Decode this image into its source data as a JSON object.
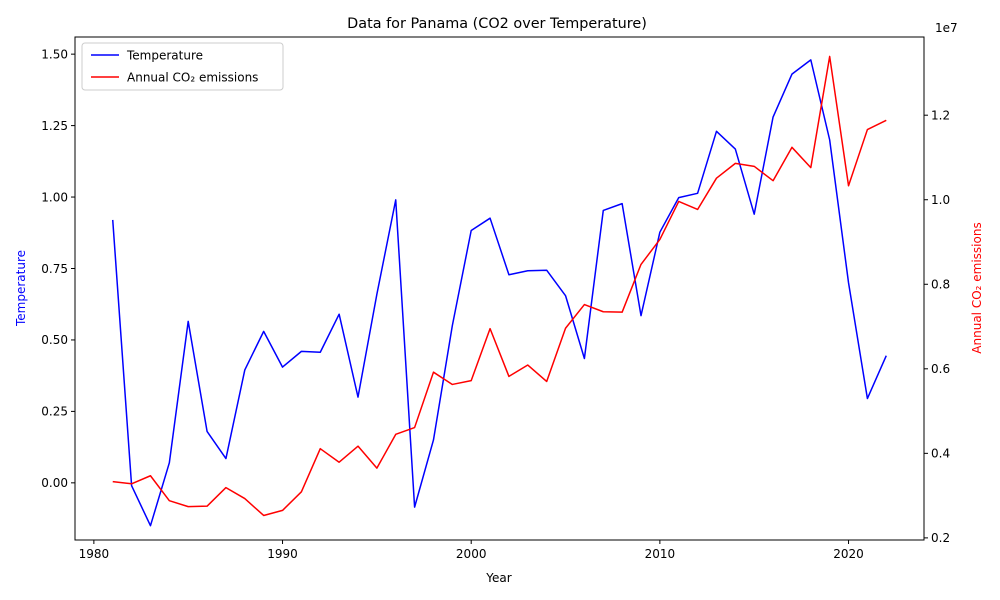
{
  "chart_data": {
    "type": "line",
    "title": "Data for Panama (CO2 over Temperature)",
    "xlabel": "Year",
    "x_ticks": [
      1980,
      1990,
      2000,
      2010,
      2020
    ],
    "xlim": [
      1979,
      2024
    ],
    "left_axis": {
      "label": "Temperature",
      "color": "#0000ff",
      "ylim": [
        -0.2,
        1.56
      ],
      "ticks": [
        -0.25,
        0.0,
        0.25,
        0.5,
        0.75,
        1.0,
        1.25,
        1.5
      ],
      "tick_labels": [
        "−0.25",
        "0.00",
        "0.25",
        "0.50",
        "0.75",
        "1.00",
        "1.25",
        "1.50"
      ]
    },
    "right_axis": {
      "label": "Annual CO₂ emissions",
      "color": "#ff0000",
      "ylim": [
        1.95,
        13.85
      ],
      "ticks": [
        2,
        4,
        6,
        8,
        10,
        12
      ],
      "tick_labels": [
        "0.2",
        "0.4",
        "0.6",
        "0.8",
        "1.0",
        "1.2"
      ],
      "offset_text": "1e7"
    },
    "legend": {
      "position": "top-left",
      "entries": [
        "Temperature",
        "Annual CO₂ emissions"
      ]
    },
    "grid": false,
    "x": [
      1981,
      1982,
      1983,
      1984,
      1985,
      1986,
      1987,
      1988,
      1989,
      1990,
      1991,
      1992,
      1993,
      1994,
      1995,
      1996,
      1997,
      1998,
      1999,
      2000,
      2001,
      2002,
      2003,
      2004,
      2005,
      2006,
      2007,
      2008,
      2009,
      2010,
      2011,
      2012,
      2013,
      2014,
      2015,
      2016,
      2017,
      2018,
      2019,
      2020,
      2021,
      2022
    ],
    "series": [
      {
        "name": "Temperature",
        "axis": "left",
        "color": "#0000ff",
        "values": [
          0.92,
          -0.01,
          -0.15,
          0.07,
          0.565,
          0.18,
          0.085,
          0.395,
          0.53,
          0.405,
          0.46,
          0.457,
          0.59,
          0.3,
          0.66,
          0.99,
          -0.085,
          0.15,
          0.55,
          0.883,
          0.926,
          0.728,
          0.742,
          0.744,
          0.655,
          0.435,
          0.953,
          0.977,
          0.585,
          0.877,
          0.998,
          1.013,
          1.23,
          1.168,
          0.94,
          1.28,
          1.43,
          1.48,
          1.2,
          0.7,
          0.295,
          0.445
        ]
      },
      {
        "name": "Annual CO₂ emissions",
        "axis": "right",
        "color": "#ff0000",
        "values": [
          3.33,
          3.28,
          3.47,
          2.88,
          2.74,
          2.75,
          3.19,
          2.93,
          2.53,
          2.65,
          3.09,
          4.11,
          3.79,
          4.17,
          3.65,
          4.45,
          4.61,
          5.92,
          5.63,
          5.72,
          6.95,
          5.82,
          6.09,
          5.7,
          6.96,
          7.52,
          7.35,
          7.34,
          8.47,
          9.06,
          9.96,
          9.77,
          10.51,
          10.86,
          10.79,
          10.45,
          11.24,
          10.76,
          13.39,
          10.33,
          11.66,
          11.88
        ]
      }
    ]
  }
}
